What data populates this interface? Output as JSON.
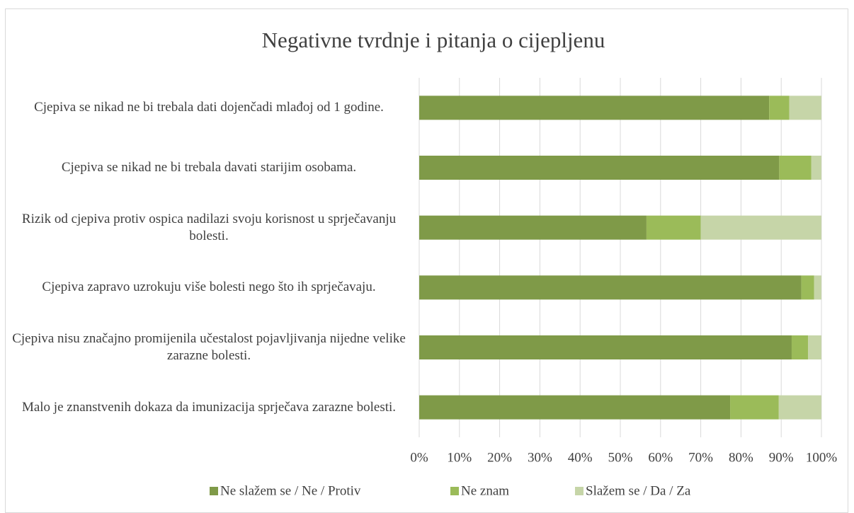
{
  "chart_data": {
    "type": "stacked-barh",
    "title": "Negativne tvrdnje i pitanja o cijepljenu",
    "categories": [
      "Cjepiva se nikad ne bi trebala dati dojenčadi mlađoj od 1 godine.",
      "Cjepiva se nikad ne bi trebala davati starijim osobama.",
      "Rizik od cjepiva protiv ospica nadilazi svoju korisnost u sprječavanju bolesti.",
      "Cjepiva zapravo uzrokuju više bolesti nego što ih sprječavaju.",
      "Cjepiva nisu značajno promijenila učestalost pojavljivanja nijedne velike zarazne bolesti.",
      "Malo je znanstvenih dokaza da imunizacija sprječava zarazne bolesti."
    ],
    "series": [
      {
        "name": "Ne slažem se / Ne / Protiv",
        "color": "#7f9a48",
        "values": [
          87,
          89.5,
          56.5,
          95,
          92.6,
          77.3
        ]
      },
      {
        "name": "Ne znam",
        "color": "#9bbb59",
        "values": [
          5,
          8,
          13.5,
          3.2,
          4.1,
          12.1
        ]
      },
      {
        "name": "Slažem se / Da / Za",
        "color": "#c6d5a8",
        "values": [
          8,
          2.5,
          30,
          1.8,
          3.3,
          10.6
        ]
      }
    ],
    "xlim": [
      0,
      100
    ],
    "xticks": [
      {
        "value": 0,
        "label": "0%"
      },
      {
        "value": 10,
        "label": "10%"
      },
      {
        "value": 20,
        "label": "20%"
      },
      {
        "value": 30,
        "label": "30%"
      },
      {
        "value": 40,
        "label": "40%"
      },
      {
        "value": 50,
        "label": "50%"
      },
      {
        "value": 60,
        "label": "60%"
      },
      {
        "value": 70,
        "label": "70%"
      },
      {
        "value": 80,
        "label": "80%"
      },
      {
        "value": 90,
        "label": "90%"
      },
      {
        "value": 100,
        "label": "100%"
      }
    ],
    "grid": true,
    "legend": "bottom"
  }
}
